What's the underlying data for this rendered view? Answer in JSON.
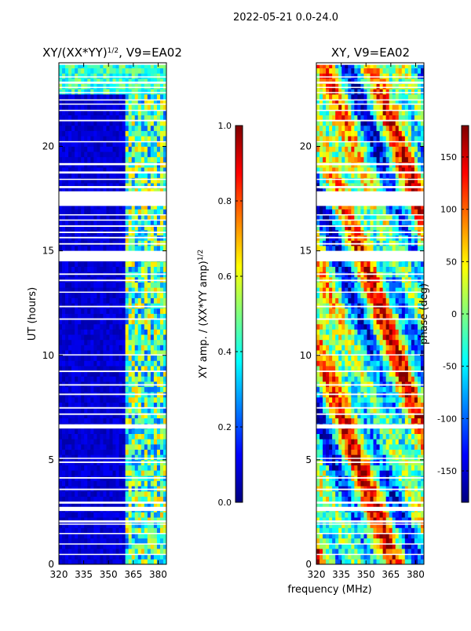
{
  "figure": {
    "suptitle": "2022-05-21 0.0-24.0",
    "xlabel": "frequency (MHz)"
  },
  "colors": {
    "jet": [
      "#00007f",
      "#0000ff",
      "#007fff",
      "#00ffff",
      "#7fff7f",
      "#ffff00",
      "#ff7f00",
      "#ff0000",
      "#7f0000"
    ],
    "gap": "#ffffff"
  },
  "chart_data": [
    {
      "type": "heatmap",
      "title": "XY/(XX*YY)^1/2, V9=EA02",
      "title_main": "XY/(XX*YY)",
      "title_sup": "1/2",
      "title_rest": ", V9=EA02",
      "xlabel": "",
      "ylabel": "UT (hours)",
      "xlim": [
        320,
        385
      ],
      "ylim": [
        0,
        24
      ],
      "xticks": [
        320,
        335,
        350,
        365,
        380
      ],
      "yticks": [
        0,
        5,
        10,
        15,
        20
      ],
      "pattern": "coherence",
      "colorbar": {
        "label": "XY amp. / (XX*YY amp)^1/2",
        "label_main": "XY amp. / (XX*YY amp)",
        "label_sup": "1/2",
        "range": [
          0.0,
          1.0
        ],
        "ticks": [
          "0.0",
          "0.2",
          "0.4",
          "0.6",
          "0.8",
          "1.0"
        ],
        "tick_values": [
          0.0,
          0.2,
          0.4,
          0.6,
          0.8,
          1.0
        ]
      }
    },
    {
      "type": "heatmap",
      "title": "XY, V9=EA02",
      "xlabel": "frequency (MHz)",
      "ylabel": "",
      "xlim": [
        320,
        385
      ],
      "ylim": [
        0,
        24
      ],
      "xticks": [
        320,
        335,
        350,
        365,
        380
      ],
      "yticks": [
        0,
        5,
        10,
        15,
        20
      ],
      "pattern": "phase",
      "colorbar": {
        "label": "phase (deg)",
        "range": [
          -180,
          180
        ],
        "ticks": [
          "-150",
          "-100",
          "-50",
          "0",
          "50",
          "100",
          "150"
        ],
        "tick_values": [
          -150,
          -100,
          -50,
          0,
          50,
          100,
          150
        ]
      }
    }
  ],
  "flagged_hours": [
    [
      0.45,
      0.5
    ],
    [
      0.95,
      1.0
    ],
    [
      1.45,
      1.5
    ],
    [
      1.9,
      1.95
    ],
    [
      2.0,
      2.1
    ],
    [
      2.55,
      2.75
    ],
    [
      2.9,
      3.0
    ],
    [
      3.55,
      3.62
    ],
    [
      4.1,
      4.17
    ],
    [
      4.85,
      4.92
    ],
    [
      5.05,
      5.1
    ],
    [
      6.5,
      6.7
    ],
    [
      7.15,
      7.22
    ],
    [
      7.45,
      7.52
    ],
    [
      8.1,
      8.17
    ],
    [
      8.55,
      8.62
    ],
    [
      9.2,
      9.27
    ],
    [
      10.0,
      10.05
    ],
    [
      11.7,
      11.77
    ],
    [
      12.3,
      12.37
    ],
    [
      13.0,
      13.05
    ],
    [
      13.55,
      13.62
    ],
    [
      13.85,
      13.92
    ],
    [
      14.5,
      15.0
    ],
    [
      15.3,
      15.37
    ],
    [
      15.6,
      15.67
    ],
    [
      15.85,
      15.92
    ],
    [
      16.15,
      16.22
    ],
    [
      16.45,
      16.5
    ],
    [
      16.7,
      16.75
    ],
    [
      17.15,
      17.85
    ],
    [
      18.0,
      18.1
    ],
    [
      18.4,
      18.45
    ],
    [
      18.7,
      18.8
    ],
    [
      19.1,
      19.2
    ],
    [
      20.2,
      20.25
    ],
    [
      21.2,
      21.27
    ],
    [
      21.7,
      21.75
    ],
    [
      22.0,
      22.05
    ],
    [
      22.2,
      22.25
    ],
    [
      22.55,
      22.6
    ],
    [
      22.8,
      22.85
    ],
    [
      23.0,
      23.1
    ],
    [
      23.3,
      23.35
    ],
    [
      23.9,
      24.0
    ]
  ]
}
